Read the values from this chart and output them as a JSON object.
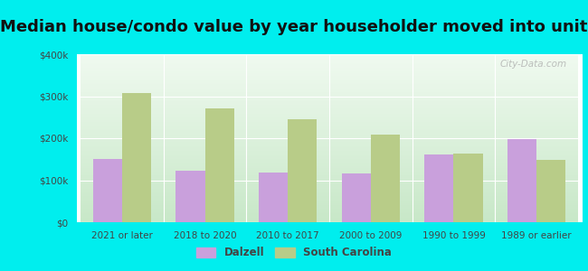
{
  "title": "Median house/condo value by year householder moved into unit",
  "categories": [
    "2021 or later",
    "2018 to 2020",
    "2010 to 2017",
    "2000 to 2009",
    "1990 to 1999",
    "1989 or earlier"
  ],
  "dalzell_values": [
    150000,
    122000,
    118000,
    117000,
    162000,
    198000
  ],
  "sc_values": [
    308000,
    270000,
    245000,
    208000,
    163000,
    148000
  ],
  "dalzell_color": "#c9a0dc",
  "sc_color": "#b8cc88",
  "background_color": "#00eeee",
  "ylim": [
    0,
    400000
  ],
  "yticks": [
    0,
    100000,
    200000,
    300000,
    400000
  ],
  "ytick_labels": [
    "$0",
    "$100k",
    "$200k",
    "$300k",
    "$400k"
  ],
  "title_fontsize": 13,
  "legend_labels": [
    "Dalzell",
    "South Carolina"
  ],
  "watermark": "City-Data.com",
  "bar_width": 0.35
}
